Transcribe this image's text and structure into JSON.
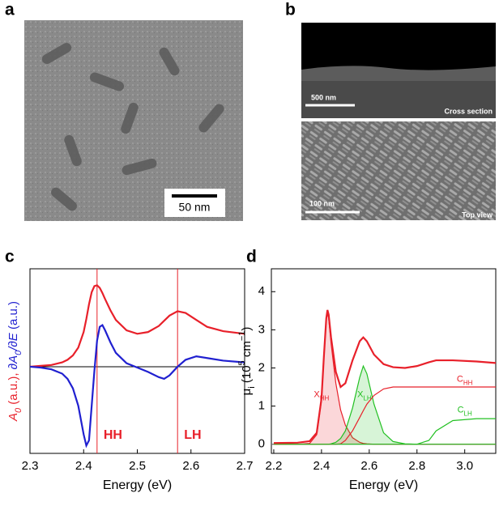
{
  "panels": {
    "a": {
      "label": "a",
      "scale_bar": "50 nm"
    },
    "b": {
      "label": "b",
      "top": {
        "scale_bar": "500 nm",
        "caption": "Cross section"
      },
      "bottom": {
        "scale_bar": "100 nm",
        "caption": "Top view"
      }
    }
  },
  "chart_data": [
    {
      "type": "line",
      "panel": "c",
      "x_label": "Energy (eV)",
      "y_label": [
        {
          "text": "A",
          "color": "#e8202a",
          "italic": true
        },
        {
          "text": "0",
          "color": "#e8202a",
          "italic": true,
          "style": "sub"
        },
        {
          "text": " (a.u.), ",
          "color": "#e8202a"
        },
        {
          "text": "∂A",
          "color": "#2020d0",
          "italic": true
        },
        {
          "text": "0",
          "color": "#2020d0",
          "italic": true,
          "style": "sub"
        },
        {
          "text": "/∂",
          "color": "#2020d0",
          "italic": true
        },
        {
          "text": "E",
          "color": "#2020d0",
          "italic": true
        },
        {
          "text": " (a.u.)",
          "color": "#2020d0"
        }
      ],
      "xlim": [
        2.3,
        2.7
      ],
      "ylim": [
        -1,
        1.13
      ],
      "xticks": [
        2.3,
        2.4,
        2.5,
        2.6,
        2.7
      ],
      "hline": 0,
      "vlines": [
        {
          "x": 2.425,
          "label": "HH"
        },
        {
          "x": 2.575,
          "label": "LH"
        }
      ],
      "vline_color": "#e8202a",
      "x": [
        2.3,
        2.32,
        2.34,
        2.36,
        2.37,
        2.38,
        2.39,
        2.4,
        2.405,
        2.41,
        2.415,
        2.42,
        2.425,
        2.43,
        2.435,
        2.44,
        2.45,
        2.46,
        2.48,
        2.5,
        2.52,
        2.54,
        2.55,
        2.56,
        2.575,
        2.59,
        2.61,
        2.63,
        2.66,
        2.7
      ],
      "series": [
        {
          "name": "A0",
          "color": "#e8202a",
          "values": [
            0,
            0.01,
            0.02,
            0.05,
            0.08,
            0.13,
            0.22,
            0.4,
            0.55,
            0.72,
            0.86,
            0.93,
            0.94,
            0.91,
            0.85,
            0.78,
            0.65,
            0.54,
            0.42,
            0.38,
            0.4,
            0.47,
            0.53,
            0.59,
            0.64,
            0.62,
            0.54,
            0.46,
            0.41,
            0.38
          ]
        },
        {
          "name": "dA0/dE",
          "color": "#2020d0",
          "values": [
            0,
            -0.01,
            -0.03,
            -0.08,
            -0.14,
            -0.25,
            -0.45,
            -0.78,
            -0.91,
            -0.85,
            -0.45,
            -0.05,
            0.3,
            0.46,
            0.48,
            0.42,
            0.28,
            0.16,
            0.04,
            -0.01,
            -0.06,
            -0.12,
            -0.14,
            -0.1,
            0.0,
            0.08,
            0.12,
            0.1,
            0.07,
            0.05
          ]
        }
      ]
    },
    {
      "type": "line",
      "panel": "d",
      "x_label": "Energy (eV)",
      "y_label": [
        {
          "text": "μ"
        },
        {
          "text": "i",
          "style": "sub"
        },
        {
          "text": " (10"
        },
        {
          "text": "5",
          "style": "sup"
        },
        {
          "text": " cm"
        },
        {
          "text": "−1",
          "style": "sup"
        },
        {
          "text": ")"
        }
      ],
      "xlim": [
        2.19,
        3.13
      ],
      "ylim": [
        -0.24,
        4.6
      ],
      "xticks": [
        2.2,
        2.4,
        2.6,
        2.8,
        {
          "value": 3,
          "label": "3.0"
        }
      ],
      "yticks": [
        0,
        1,
        2,
        3,
        4
      ],
      "hline": 0,
      "x": [
        2.2,
        2.3,
        2.35,
        2.38,
        2.4,
        2.41,
        2.42,
        2.425,
        2.43,
        2.44,
        2.46,
        2.48,
        2.5,
        2.53,
        2.56,
        2.575,
        2.59,
        2.62,
        2.66,
        2.7,
        2.75,
        2.8,
        2.85,
        2.88,
        2.95,
        3.05,
        3.13
      ],
      "series": [
        {
          "name": "X",
          "subscript": "HH",
          "color": "#e8202a",
          "fill": true,
          "values": [
            0,
            0,
            0.02,
            0.25,
            1.15,
            2.25,
            3.25,
            3.45,
            3.3,
            2.65,
            1.6,
            0.9,
            0.5,
            0.17,
            0.05,
            0.02,
            0.01,
            0,
            0,
            0,
            0,
            0,
            0,
            0,
            0,
            0,
            0
          ]
        },
        {
          "name": "X",
          "subscript": "LH",
          "color": "#22c022",
          "fill": true,
          "values": [
            0,
            0,
            0,
            0,
            0,
            0,
            0,
            0,
            0,
            0.01,
            0.05,
            0.15,
            0.35,
            0.95,
            1.75,
            2.05,
            1.85,
            1.05,
            0.3,
            0.07,
            0.01,
            0,
            0,
            0,
            0,
            0,
            0
          ]
        },
        {
          "name": "C",
          "subscript": "HH",
          "color": "#e8202a",
          "values": [
            0,
            0,
            0,
            0,
            0,
            0,
            0,
            0,
            0,
            0,
            0,
            0.01,
            0.1,
            0.35,
            0.7,
            0.88,
            1.05,
            1.28,
            1.45,
            1.5,
            1.5,
            1.5,
            1.5,
            1.5,
            1.5,
            1.5,
            1.5
          ]
        },
        {
          "name": "C",
          "subscript": "LH",
          "color": "#22c022",
          "values": [
            0,
            0,
            0,
            0,
            0,
            0,
            0,
            0,
            0,
            0,
            0,
            0,
            0,
            0,
            0,
            0,
            0,
            0,
            0,
            0,
            0,
            0,
            0.1,
            0.35,
            0.62,
            0.67,
            0.67
          ]
        },
        {
          "name": "total",
          "color": "#e8202a",
          "values": [
            0.03,
            0.04,
            0.08,
            0.3,
            1.2,
            2.3,
            3.3,
            3.52,
            3.4,
            2.8,
            1.9,
            1.5,
            1.6,
            2.2,
            2.7,
            2.8,
            2.7,
            2.35,
            2.1,
            2.02,
            2.0,
            2.05,
            2.15,
            2.2,
            2.2,
            2.17,
            2.13
          ]
        }
      ]
    }
  ]
}
